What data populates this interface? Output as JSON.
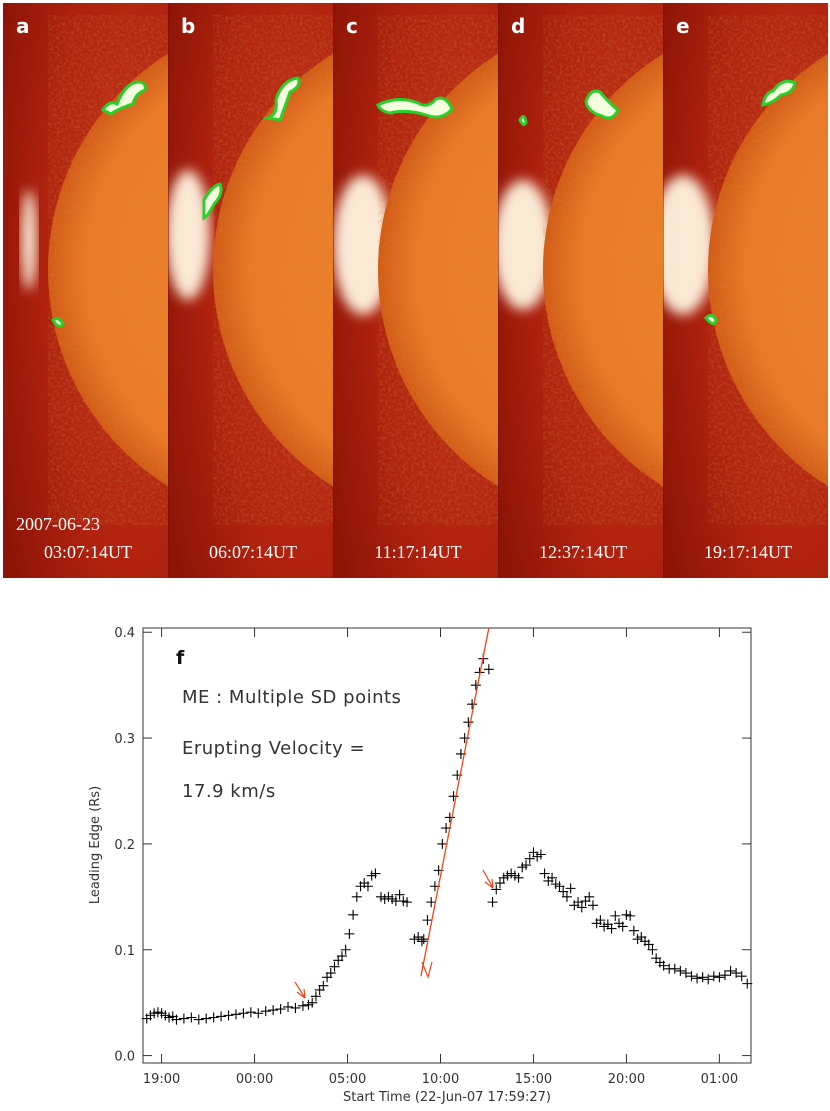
{
  "panels": [
    {
      "label": "a",
      "time": "03:07:14UT"
    },
    {
      "label": "b",
      "time": "06:07:14UT"
    },
    {
      "label": "c",
      "time": "11:17:14UT"
    },
    {
      "label": "d",
      "time": "12:37:14UT"
    },
    {
      "label": "e",
      "time": "19:17:14UT"
    }
  ],
  "date": "2007-06-23",
  "chart_data": {
    "type": "scatter",
    "panel_label": "f",
    "annotations": [
      "ME : Multiple SD points",
      "Erupting Velocity =",
      "17.9 km/s"
    ],
    "x_label": "Start Time (22-Jun-07 17:59:27)",
    "y_label": "Leading Edge (Rs)",
    "color": "#000000",
    "x": [
      18.2,
      18.4,
      18.6,
      18.8,
      19.0,
      19.2,
      19.4,
      19.6,
      19.8,
      20.2,
      20.6,
      21.0,
      21.4,
      21.8,
      22.2,
      22.6,
      23.0,
      23.4,
      23.8,
      24.2,
      24.6,
      25.0,
      25.4,
      25.8,
      26.2,
      26.6,
      26.9,
      27.1,
      27.3,
      27.5,
      27.7,
      27.9,
      28.1,
      28.3,
      28.5,
      28.7,
      28.9,
      29.1,
      29.3,
      29.5,
      29.7,
      29.9,
      30.1,
      30.3,
      30.5,
      30.8,
      31.0,
      31.2,
      31.4,
      31.6,
      31.8,
      32.0,
      32.2,
      32.6,
      32.8,
      33.0,
      33.1,
      33.3,
      33.5,
      33.7,
      33.9,
      34.1,
      34.3,
      34.5,
      34.7,
      34.9,
      35.1,
      35.3,
      35.5,
      35.7,
      35.9,
      36.1,
      36.3,
      36.6,
      36.8,
      37.0,
      37.2,
      37.4,
      37.6,
      37.8,
      38.0,
      38.2,
      38.4,
      38.6,
      38.8,
      39.0,
      39.2,
      39.4,
      39.6,
      39.8,
      40.0,
      40.2,
      40.4,
      40.6,
      40.8,
      41.0,
      41.2,
      41.4,
      41.6,
      41.8,
      42.0,
      42.2,
      42.4,
      42.6,
      42.8,
      43.0,
      43.2,
      43.4,
      43.6,
      43.8,
      44.0,
      44.2,
      44.4,
      44.6,
      44.8,
      45.0,
      45.2,
      45.4,
      45.6,
      45.8,
      46.0,
      46.3,
      46.6,
      46.9,
      47.2,
      47.5,
      47.8,
      48.1,
      48.4,
      48.7,
      49.0,
      49.3,
      49.6,
      49.9,
      50.2,
      50.5
    ],
    "values": [
      0.035,
      0.038,
      0.04,
      0.041,
      0.04,
      0.038,
      0.036,
      0.037,
      0.034,
      0.035,
      0.036,
      0.034,
      0.035,
      0.036,
      0.037,
      0.038,
      0.039,
      0.04,
      0.041,
      0.04,
      0.042,
      0.043,
      0.044,
      0.046,
      0.045,
      0.047,
      0.048,
      0.05,
      0.056,
      0.062,
      0.066,
      0.074,
      0.078,
      0.084,
      0.09,
      0.094,
      0.1,
      0.115,
      0.133,
      0.15,
      0.16,
      0.163,
      0.16,
      0.17,
      0.172,
      0.15,
      0.148,
      0.15,
      0.148,
      0.146,
      0.152,
      0.146,
      0.145,
      0.11,
      0.112,
      0.108,
      0.11,
      0.128,
      0.145,
      0.16,
      0.175,
      0.2,
      0.215,
      0.225,
      0.245,
      0.265,
      0.285,
      0.3,
      0.315,
      0.332,
      0.35,
      0.362,
      0.375,
      0.365,
      0.145,
      0.157,
      0.163,
      0.168,
      0.17,
      0.172,
      0.17,
      0.168,
      0.178,
      0.18,
      0.186,
      0.192,
      0.188,
      0.19,
      0.172,
      0.165,
      0.168,
      0.162,
      0.16,
      0.155,
      0.15,
      0.158,
      0.142,
      0.145,
      0.14,
      0.146,
      0.15,
      0.142,
      0.125,
      0.128,
      0.122,
      0.124,
      0.12,
      0.132,
      0.125,
      0.122,
      0.133,
      0.132,
      0.118,
      0.11,
      0.112,
      0.108,
      0.105,
      0.1,
      0.092,
      0.088,
      0.085,
      0.082,
      0.082,
      0.08,
      0.078,
      0.075,
      0.073,
      0.074,
      0.072,
      0.075,
      0.074,
      0.076,
      0.08,
      0.078,
      0.075,
      0.068
    ],
    "fit": {
      "x": [
        32.95,
        36.6
      ],
      "values": [
        0.075,
        0.404
      ],
      "color": "#e8471c"
    },
    "xlim": [
      18,
      50.7
    ],
    "ylim": [
      -0.007,
      0.404
    ],
    "xticks": [
      {
        "value": 19,
        "label": "19:00"
      },
      {
        "value": 24,
        "label": "00:00"
      },
      {
        "value": 29,
        "label": "05:00"
      },
      {
        "value": 34,
        "label": "10:00"
      },
      {
        "value": 39,
        "label": "15:00"
      },
      {
        "value": 44,
        "label": "20:00"
      },
      {
        "value": 49,
        "label": "01:00"
      }
    ],
    "yticks": [
      {
        "value": 0,
        "label": "0.0"
      },
      0.1,
      0.2,
      0.3,
      0.4
    ]
  }
}
